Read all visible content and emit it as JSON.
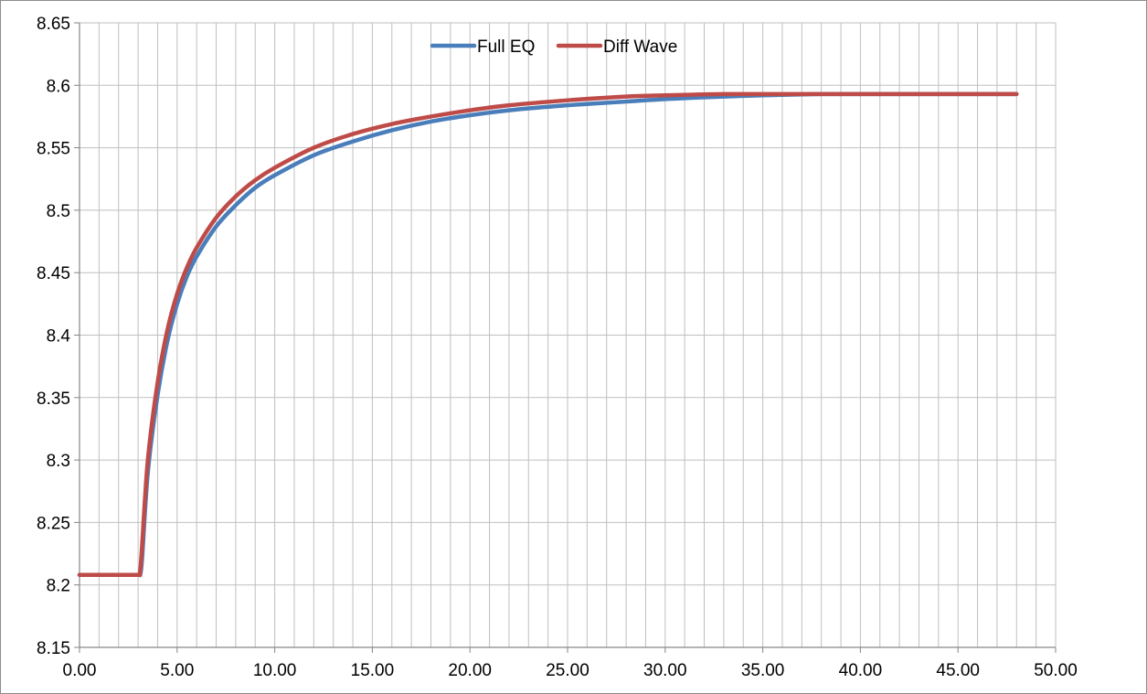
{
  "chart_data": {
    "type": "line",
    "title": "",
    "xlabel": "",
    "ylabel": "",
    "xlim": [
      0,
      50
    ],
    "ylim": [
      8.15,
      8.65
    ],
    "x_major_ticks": [
      "0.00",
      "5.00",
      "10.00",
      "15.00",
      "20.00",
      "25.00",
      "30.00",
      "35.00",
      "40.00",
      "45.00",
      "50.00"
    ],
    "y_ticks": [
      "8.15",
      "8.2",
      "8.25",
      "8.3",
      "8.35",
      "8.4",
      "8.45",
      "8.5",
      "8.55",
      "8.6",
      "8.65"
    ],
    "x_minor_step": 1,
    "grid": "on",
    "legend": "top-center",
    "series": [
      {
        "name": "Full EQ",
        "color": "#4a7ebb",
        "x": [
          0,
          1,
          2,
          3,
          3.1,
          3.2,
          3.5,
          4,
          4.5,
          5,
          5.5,
          6,
          7,
          8,
          9,
          10,
          12,
          14,
          16,
          18,
          20,
          22,
          25,
          28,
          30,
          33,
          35,
          38,
          40,
          43,
          45,
          48
        ],
        "y": [
          8.208,
          8.208,
          8.208,
          8.208,
          8.208,
          8.22,
          8.29,
          8.352,
          8.395,
          8.425,
          8.447,
          8.463,
          8.487,
          8.504,
          8.518,
          8.528,
          8.544,
          8.555,
          8.564,
          8.571,
          8.576,
          8.58,
          8.584,
          8.587,
          8.589,
          8.591,
          8.592,
          8.593,
          8.593,
          8.593,
          8.593,
          8.593
        ]
      },
      {
        "name": "Diff Wave",
        "color": "#be4b48",
        "x": [
          0,
          1,
          2,
          3,
          3.1,
          3.2,
          3.5,
          4,
          4.5,
          5,
          5.5,
          6,
          7,
          8,
          9,
          10,
          12,
          14,
          16,
          18,
          20,
          22,
          25,
          28,
          30,
          33,
          35,
          38,
          40,
          43,
          45,
          48
        ],
        "y": [
          8.208,
          8.208,
          8.208,
          8.208,
          8.21,
          8.23,
          8.3,
          8.362,
          8.404,
          8.433,
          8.454,
          8.47,
          8.494,
          8.511,
          8.524,
          8.534,
          8.55,
          8.561,
          8.569,
          8.575,
          8.58,
          8.584,
          8.588,
          8.591,
          8.592,
          8.593,
          8.593,
          8.593,
          8.593,
          8.593,
          8.593,
          8.593
        ]
      }
    ]
  }
}
